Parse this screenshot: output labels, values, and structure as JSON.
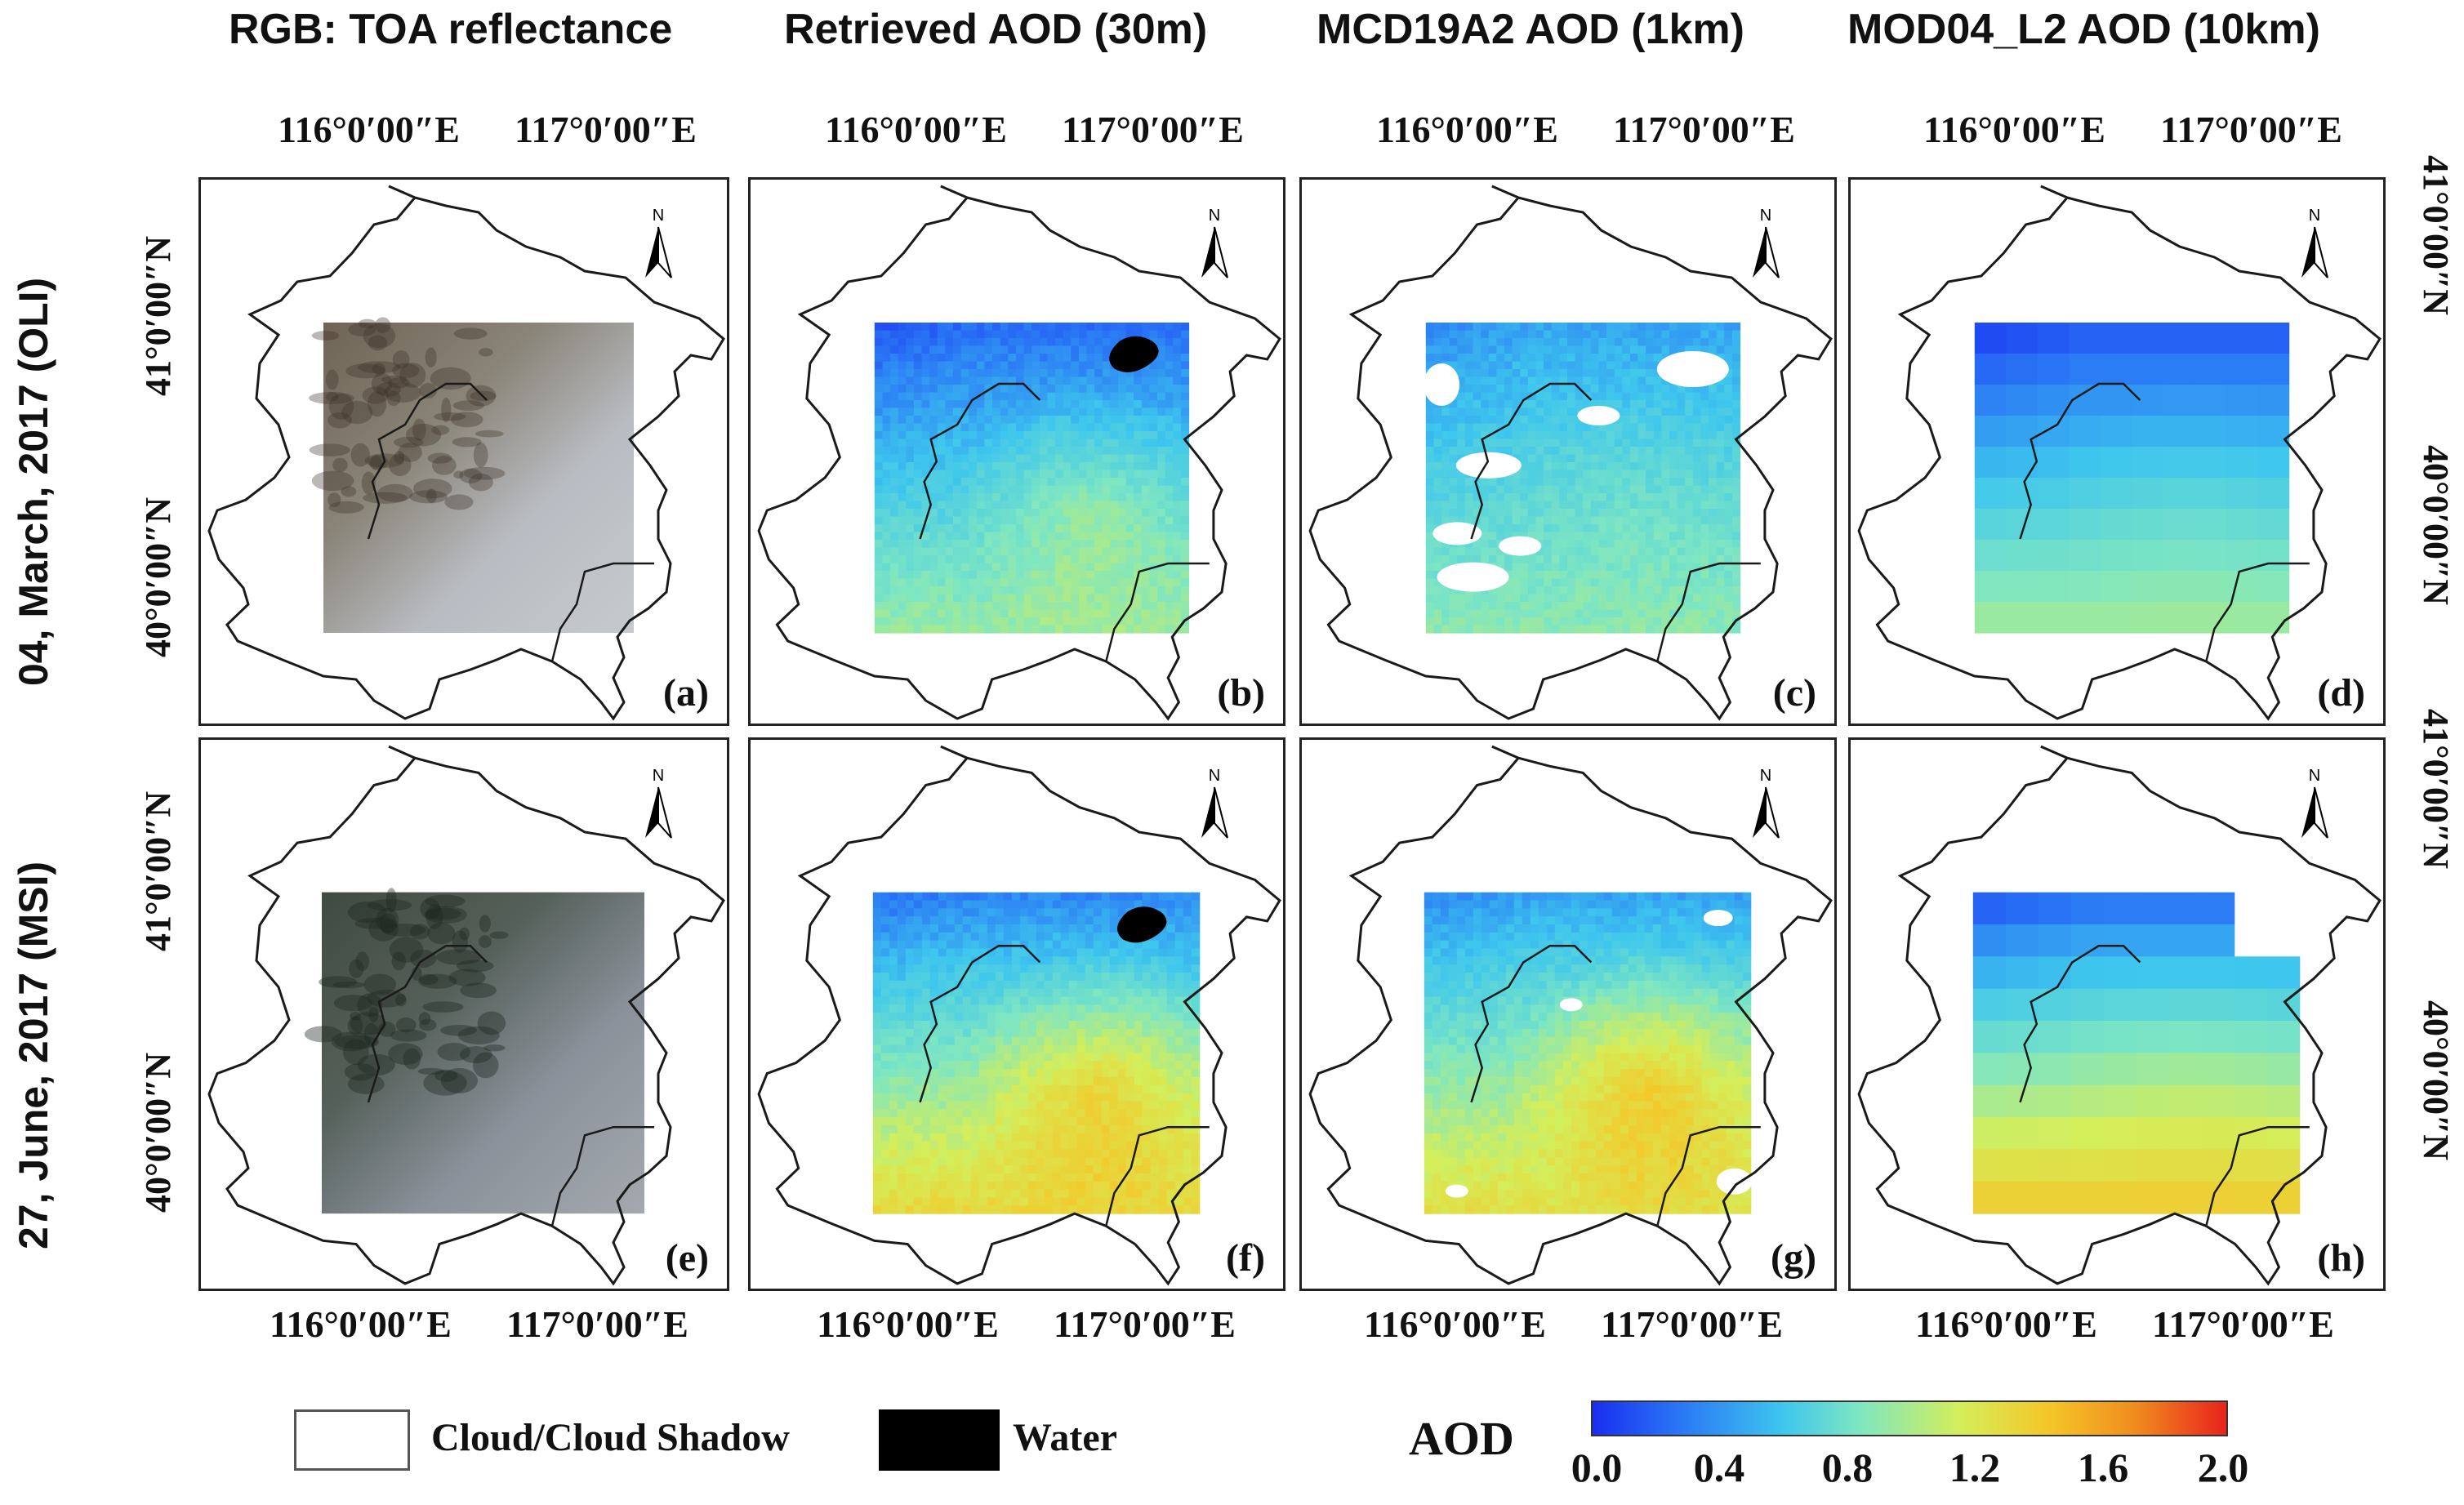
{
  "column_titles": [
    "RGB: TOA reflectance",
    "Retrieved AOD (30m)",
    "MCD19A2 AOD (1km)",
    "MOD04_L2 AOD (10km)"
  ],
  "row_titles": [
    "04, March, 2017 (OLI)",
    "27, June, 2017 (MSI)"
  ],
  "lon_labels": [
    "116°0′00″E",
    "117°0′00″E"
  ],
  "lat_labels": [
    "41°0′00″N",
    "40°0′00″N"
  ],
  "north_arrow_letter": "N",
  "panel_labels": [
    "(a)",
    "(b)",
    "(c)",
    "(d)",
    "(e)",
    "(f)",
    "(g)",
    "(h)"
  ],
  "legend": {
    "cloud_label": "Cloud/Cloud Shadow",
    "water_label": "Water",
    "colorbar_title": "AOD",
    "colorbar_ticks": [
      "0.0",
      "0.4",
      "0.8",
      "1.2",
      "1.6",
      "2.0"
    ]
  },
  "colors": {
    "cloud": "#ffffff",
    "water": "#000000",
    "colormap": [
      "#1a2ef0",
      "#2a78f5",
      "#3ec6ee",
      "#7ee6c2",
      "#d4ee5a",
      "#f5c628",
      "#f08a1e",
      "#e8231e"
    ]
  },
  "layers": [
    {
      "panel": "a",
      "type": "rgb",
      "aod": null
    },
    {
      "panel": "b",
      "type": "aod",
      "aod": {
        "north": 0.25,
        "south": 0.95,
        "hotspot": 1.15,
        "water": true,
        "clouds": false
      }
    },
    {
      "panel": "c",
      "type": "aod",
      "aod": {
        "north": 0.45,
        "south": 0.9,
        "hotspot": 0.95,
        "water": false,
        "clouds": true
      }
    },
    {
      "panel": "d",
      "type": "aod_grid",
      "aod": {
        "north": 0.2,
        "south": 0.95,
        "hotspot": 1.0
      }
    },
    {
      "panel": "e",
      "type": "rgb",
      "aod": null
    },
    {
      "panel": "f",
      "type": "aod",
      "aod": {
        "north": 0.35,
        "south": 1.3,
        "hotspot": 1.6,
        "water": true,
        "clouds": false
      }
    },
    {
      "panel": "g",
      "type": "aod",
      "aod": {
        "north": 0.45,
        "south": 1.25,
        "hotspot": 1.6,
        "water": false,
        "clouds": true
      }
    },
    {
      "panel": "h",
      "type": "aod_grid",
      "aod": {
        "north": 0.3,
        "south": 1.35,
        "hotspot": 1.4
      }
    }
  ]
}
